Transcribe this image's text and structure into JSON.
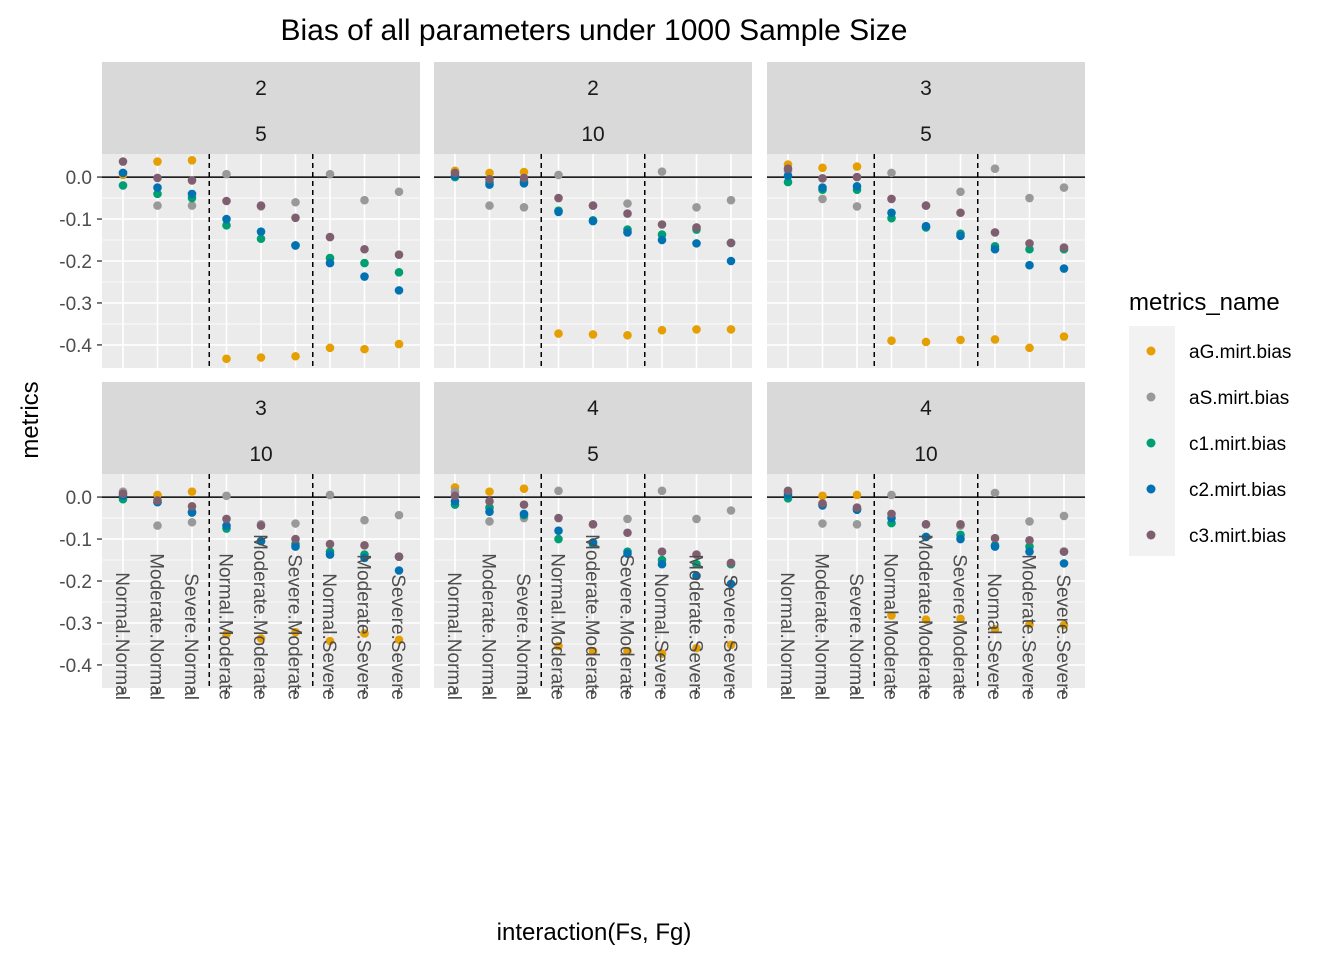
{
  "chart_data": {
    "type": "scatter",
    "title": "Bias of all parameters under 1000 Sample Size",
    "xlabel": "interaction(Fs, Fg)",
    "ylabel": "metrics",
    "categories": [
      "Normal.Normal",
      "Moderate.Normal",
      "Severe.Normal",
      "Normal.Moderate",
      "Moderate.Moderate",
      "Severe.Moderate",
      "Normal.Severe",
      "Moderate.Severe",
      "Severe.Severe"
    ],
    "yticks": [
      0.0,
      -0.1,
      -0.2,
      -0.3,
      -0.4
    ],
    "ytick_labels": [
      "0.0",
      "-0.1",
      "-0.2",
      "-0.3",
      "-0.4"
    ],
    "ylim": [
      -0.455,
      0.055
    ],
    "hline": 0,
    "vlines_between": [
      3,
      6
    ],
    "grid": true,
    "legend": {
      "title": "metrics_name",
      "position": "right",
      "items": [
        {
          "name": "aG.mirt.bias",
          "color": "#E69F00"
        },
        {
          "name": "aS.mirt.bias",
          "color": "#999999"
        },
        {
          "name": "c1.mirt.bias",
          "color": "#009E73"
        },
        {
          "name": "c2.mirt.bias",
          "color": "#0072B2"
        },
        {
          "name": "c3.mirt.bias",
          "color": "#7F5F6F"
        }
      ]
    },
    "panels": [
      {
        "strip": [
          "2",
          "5"
        ],
        "series": {
          "aG.mirt.bias": [
            0.005,
            0.037,
            0.04,
            -0.433,
            -0.43,
            -0.427,
            -0.407,
            -0.41,
            -0.398
          ],
          "aS.mirt.bias": [
            0.01,
            -0.068,
            -0.068,
            0.007,
            -0.07,
            -0.06,
            0.007,
            -0.055,
            -0.035
          ],
          "c1.mirt.bias": [
            -0.02,
            -0.04,
            -0.05,
            -0.115,
            -0.147,
            -0.163,
            -0.193,
            -0.205,
            -0.227
          ],
          "c2.mirt.bias": [
            0.01,
            -0.025,
            -0.04,
            -0.1,
            -0.13,
            -0.163,
            -0.205,
            -0.237,
            -0.27
          ],
          "c3.mirt.bias": [
            0.037,
            -0.002,
            -0.008,
            -0.057,
            -0.068,
            -0.097,
            -0.143,
            -0.172,
            -0.185
          ]
        }
      },
      {
        "strip": [
          "2",
          "10"
        ],
        "series": {
          "aG.mirt.bias": [
            0.015,
            0.01,
            0.012,
            -0.373,
            -0.375,
            -0.377,
            -0.365,
            -0.363,
            -0.363
          ],
          "aS.mirt.bias": [
            0.008,
            -0.068,
            -0.072,
            0.005,
            -0.068,
            -0.063,
            0.013,
            -0.072,
            -0.055
          ],
          "c1.mirt.bias": [
            0.0,
            -0.012,
            -0.01,
            -0.08,
            -0.103,
            -0.125,
            -0.137,
            -0.125,
            -0.157
          ],
          "c2.mirt.bias": [
            0.003,
            -0.018,
            -0.015,
            -0.083,
            -0.105,
            -0.132,
            -0.15,
            -0.158,
            -0.2
          ],
          "c3.mirt.bias": [
            0.01,
            -0.005,
            -0.002,
            -0.05,
            -0.068,
            -0.087,
            -0.113,
            -0.12,
            -0.157
          ]
        }
      },
      {
        "strip": [
          "3",
          "5"
        ],
        "series": {
          "aG.mirt.bias": [
            0.03,
            0.022,
            0.025,
            -0.39,
            -0.393,
            -0.388,
            -0.387,
            -0.407,
            -0.38
          ],
          "aS.mirt.bias": [
            0.015,
            -0.052,
            -0.07,
            0.01,
            -0.068,
            -0.035,
            0.02,
            -0.05,
            -0.025
          ],
          "c1.mirt.bias": [
            -0.012,
            -0.03,
            -0.03,
            -0.098,
            -0.12,
            -0.135,
            -0.165,
            -0.172,
            -0.172
          ],
          "c2.mirt.bias": [
            0.003,
            -0.025,
            -0.022,
            -0.085,
            -0.117,
            -0.14,
            -0.172,
            -0.21,
            -0.218
          ],
          "c3.mirt.bias": [
            0.02,
            -0.003,
            0.0,
            -0.052,
            -0.068,
            -0.085,
            -0.132,
            -0.158,
            -0.168
          ]
        }
      },
      {
        "strip": [
          "3",
          "10"
        ],
        "series": {
          "aG.mirt.bias": [
            0.008,
            0.005,
            0.013,
            -0.327,
            -0.337,
            -0.322,
            -0.343,
            -0.325,
            -0.34
          ],
          "aS.mirt.bias": [
            0.013,
            -0.068,
            -0.06,
            0.003,
            -0.065,
            -0.063,
            0.005,
            -0.055,
            -0.043
          ],
          "c1.mirt.bias": [
            -0.005,
            -0.012,
            -0.035,
            -0.075,
            -0.105,
            -0.112,
            -0.13,
            -0.137,
            -0.142
          ],
          "c2.mirt.bias": [
            0.003,
            -0.012,
            -0.037,
            -0.068,
            -0.105,
            -0.118,
            -0.137,
            -0.145,
            -0.175
          ],
          "c3.mirt.bias": [
            0.008,
            -0.008,
            -0.022,
            -0.052,
            -0.068,
            -0.1,
            -0.112,
            -0.115,
            -0.142
          ]
        }
      },
      {
        "strip": [
          "4",
          "5"
        ],
        "series": {
          "aG.mirt.bias": [
            0.023,
            0.013,
            0.02,
            -0.355,
            -0.367,
            -0.367,
            -0.373,
            -0.36,
            -0.352
          ],
          "aS.mirt.bias": [
            0.013,
            -0.058,
            -0.05,
            0.015,
            -0.065,
            -0.052,
            0.015,
            -0.052,
            -0.032
          ],
          "c1.mirt.bias": [
            -0.018,
            -0.025,
            -0.043,
            -0.1,
            -0.112,
            -0.13,
            -0.15,
            -0.16,
            -0.16
          ],
          "c2.mirt.bias": [
            -0.01,
            -0.035,
            -0.04,
            -0.08,
            -0.108,
            -0.135,
            -0.16,
            -0.188,
            -0.207
          ],
          "c3.mirt.bias": [
            0.003,
            -0.01,
            -0.018,
            -0.05,
            -0.065,
            -0.085,
            -0.13,
            -0.137,
            -0.157
          ]
        }
      },
      {
        "strip": [
          "4",
          "10"
        ],
        "series": {
          "aG.mirt.bias": [
            0.013,
            0.003,
            0.005,
            -0.282,
            -0.292,
            -0.29,
            -0.315,
            -0.303,
            -0.305
          ],
          "aS.mirt.bias": [
            0.01,
            -0.063,
            -0.065,
            0.005,
            -0.065,
            -0.068,
            0.01,
            -0.058,
            -0.045
          ],
          "c1.mirt.bias": [
            -0.003,
            -0.018,
            -0.03,
            -0.062,
            -0.095,
            -0.09,
            -0.115,
            -0.118,
            -0.13
          ],
          "c2.mirt.bias": [
            0.005,
            -0.02,
            -0.03,
            -0.05,
            -0.095,
            -0.1,
            -0.118,
            -0.13,
            -0.158
          ],
          "c3.mirt.bias": [
            0.015,
            -0.015,
            -0.025,
            -0.04,
            -0.065,
            -0.065,
            -0.098,
            -0.103,
            -0.13
          ]
        }
      }
    ]
  }
}
